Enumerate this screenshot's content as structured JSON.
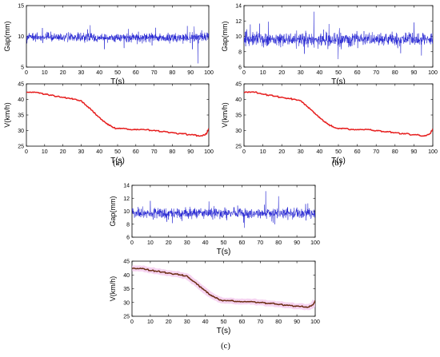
{
  "chart_data": [
    {
      "panel": "(a)",
      "type": "line",
      "xlabel": "T(s)",
      "ylabel": "Gap(mm)",
      "xlim": [
        0,
        100
      ],
      "ylim": [
        5,
        15
      ],
      "xticks": [
        0,
        10,
        20,
        30,
        40,
        50,
        60,
        70,
        80,
        90,
        100
      ],
      "yticks": [
        5,
        10,
        15
      ],
      "series": [
        {
          "color": "#1f1fd1",
          "mean": 9.8,
          "noise_amplitude": 0.8,
          "spikes": [
            [
              35,
              11.8
            ],
            [
              56,
              11.2
            ],
            [
              92,
              11.6
            ],
            [
              94,
              5.6
            ],
            [
              91,
              7.9
            ]
          ]
        }
      ],
      "sample_rate": "20"
    },
    {
      "panel": "(a)",
      "type": "line",
      "xlabel": "T(s)",
      "ylabel": "V(km/h)",
      "xlim": [
        0,
        100
      ],
      "ylim": [
        25,
        45
      ],
      "xticks": [
        0,
        10,
        20,
        30,
        40,
        50,
        60,
        70,
        80,
        90,
        100
      ],
      "yticks": [
        25,
        30,
        35,
        40,
        45
      ],
      "series": [
        {
          "color": "#e61e1e",
          "x": [
            0,
            2,
            5,
            10,
            15,
            20,
            25,
            30,
            32,
            35,
            38,
            40,
            43,
            45,
            48,
            50,
            55,
            60,
            65,
            70,
            75,
            80,
            85,
            90,
            93,
            95,
            97,
            98,
            99,
            100
          ],
          "y": [
            42.3,
            42.5,
            42.4,
            41.7,
            41.2,
            40.6,
            40.2,
            39.5,
            38.5,
            37.0,
            35.3,
            34.2,
            32.7,
            31.9,
            31.0,
            30.5,
            30.5,
            30.4,
            30.3,
            30.0,
            29.7,
            29.3,
            29.0,
            28.7,
            28.5,
            28.3,
            28.5,
            28.6,
            29.3,
            30.5
          ]
        }
      ]
    },
    {
      "panel": "(b)",
      "type": "line",
      "xlabel": "T(s)",
      "ylabel": "Gap(mm)",
      "xlim": [
        0,
        100
      ],
      "ylim": [
        6,
        14
      ],
      "xticks": [
        0,
        10,
        20,
        30,
        40,
        50,
        60,
        70,
        80,
        90,
        100
      ],
      "yticks": [
        6,
        8,
        10,
        12,
        14
      ],
      "series": [
        {
          "color": "#1f1fd1",
          "mean": 9.6,
          "noise_amplitude": 0.9,
          "spikes": [
            [
              13,
              11.9
            ],
            [
              37,
              13.2
            ],
            [
              45,
              11.6
            ],
            [
              90,
              11.8
            ],
            [
              94,
              7.5
            ],
            [
              83,
              7.8
            ]
          ]
        }
      ]
    },
    {
      "panel": "(b)",
      "type": "line",
      "xlabel": "T(s)",
      "ylabel": "V(km/h)",
      "xlim": [
        0,
        100
      ],
      "ylim": [
        25,
        45
      ],
      "xticks": [
        0,
        10,
        20,
        30,
        40,
        50,
        60,
        70,
        80,
        90,
        100
      ],
      "yticks": [
        25,
        30,
        35,
        40,
        45
      ],
      "series": [
        {
          "color": "#e61e1e",
          "x": [
            0,
            2,
            5,
            10,
            15,
            20,
            25,
            30,
            32,
            35,
            38,
            40,
            43,
            45,
            48,
            50,
            55,
            60,
            65,
            70,
            75,
            80,
            85,
            90,
            93,
            95,
            97,
            98,
            99,
            100
          ],
          "y": [
            42.3,
            42.5,
            42.4,
            41.7,
            41.2,
            40.6,
            40.2,
            39.5,
            38.5,
            37.0,
            35.3,
            34.2,
            32.7,
            31.9,
            31.0,
            30.5,
            30.5,
            30.4,
            30.3,
            30.0,
            29.7,
            29.3,
            29.0,
            28.7,
            28.5,
            28.3,
            28.5,
            28.6,
            29.3,
            30.5
          ]
        }
      ]
    },
    {
      "panel": "(c)",
      "type": "line",
      "xlabel": "T(s)",
      "ylabel": "Gap(mm)",
      "xlim": [
        0,
        100
      ],
      "ylim": [
        6,
        14
      ],
      "xticks": [
        0,
        10,
        20,
        30,
        40,
        50,
        60,
        70,
        80,
        90,
        100
      ],
      "yticks": [
        6,
        8,
        10,
        12,
        14
      ],
      "series": [
        {
          "color": "#1f1fd1",
          "mean": 9.7,
          "noise_amplitude": 0.85,
          "spikes": [
            [
              10,
              11.6
            ],
            [
              42,
              11.5
            ],
            [
              80,
              12.3
            ],
            [
              78,
              8.0
            ],
            [
              96,
              11.2
            ]
          ]
        }
      ]
    },
    {
      "panel": "(c)",
      "type": "line",
      "xlabel": "T(s)",
      "ylabel": "V(km/h)",
      "xlim": [
        0,
        100
      ],
      "ylim": [
        25,
        45
      ],
      "xticks": [
        0,
        10,
        20,
        30,
        40,
        50,
        60,
        70,
        80,
        90,
        100
      ],
      "yticks": [
        25,
        30,
        35,
        40,
        45
      ],
      "series": [
        {
          "color": "#f3c6ec",
          "glow": true,
          "x": [
            0,
            2,
            5,
            10,
            15,
            20,
            25,
            30,
            32,
            35,
            38,
            40,
            43,
            45,
            48,
            50,
            55,
            60,
            65,
            70,
            75,
            80,
            85,
            90,
            93,
            95,
            97,
            98,
            99,
            100
          ],
          "y": [
            42.3,
            42.5,
            42.4,
            41.7,
            41.2,
            40.6,
            40.2,
            39.5,
            38.5,
            37.0,
            35.3,
            34.2,
            32.7,
            31.9,
            31.0,
            30.5,
            30.5,
            30.4,
            30.3,
            30.0,
            29.7,
            29.3,
            29.0,
            28.7,
            28.5,
            28.3,
            28.5,
            28.6,
            29.3,
            30.5
          ]
        },
        {
          "color": "#6b2c12",
          "x": [
            0,
            2,
            5,
            10,
            15,
            20,
            25,
            30,
            32,
            35,
            38,
            40,
            43,
            45,
            48,
            50,
            55,
            60,
            65,
            70,
            75,
            80,
            85,
            90,
            93,
            95,
            97,
            98,
            99,
            100
          ],
          "y": [
            42.3,
            42.5,
            42.4,
            41.7,
            41.2,
            40.6,
            40.2,
            39.5,
            38.5,
            37.0,
            35.3,
            34.2,
            32.7,
            31.9,
            31.0,
            30.5,
            30.5,
            30.4,
            30.3,
            30.0,
            29.7,
            29.3,
            29.0,
            28.7,
            28.5,
            28.3,
            28.5,
            28.6,
            29.3,
            30.5
          ]
        }
      ]
    }
  ],
  "panel_labels": {
    "a": "(a)",
    "b": "(b)",
    "c": "(c)"
  }
}
